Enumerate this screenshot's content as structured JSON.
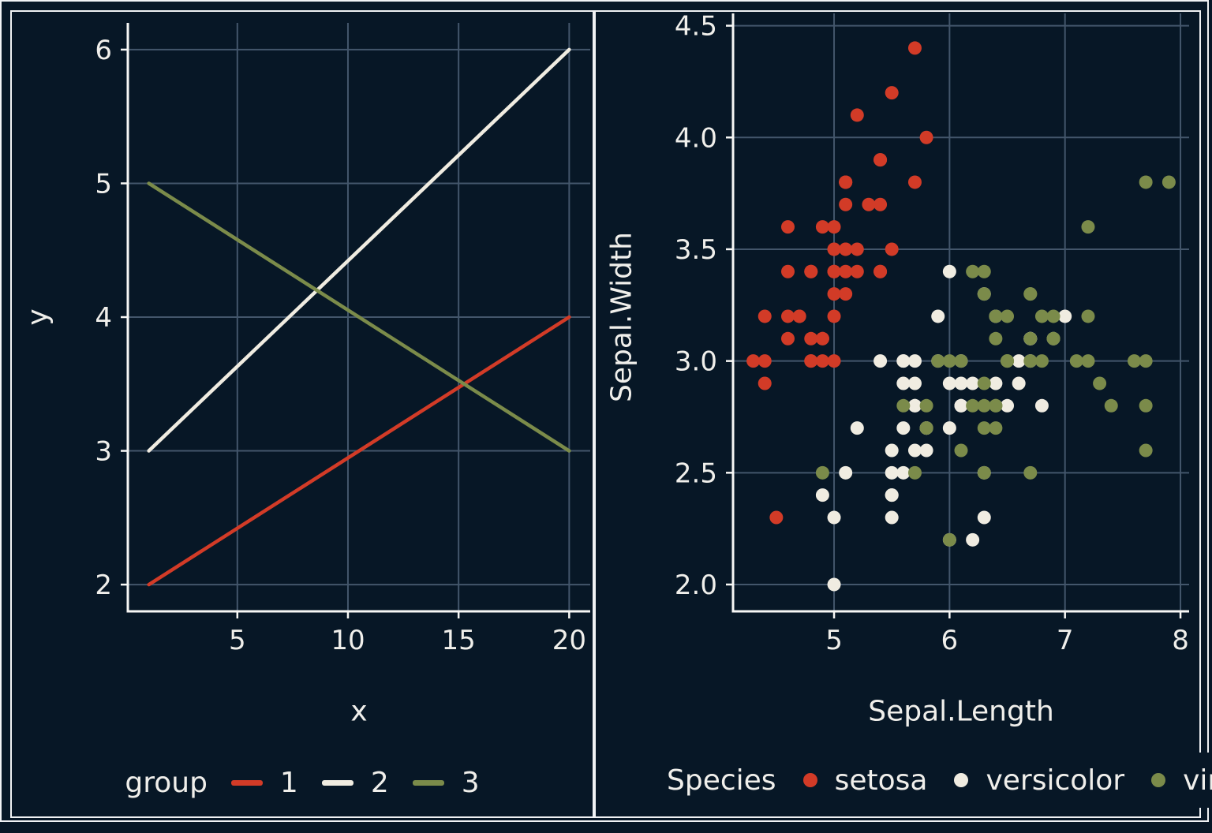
{
  "figure": {
    "background": "#071726",
    "frame_color": "#f0f2f4"
  },
  "palette": {
    "red": "#d23b27",
    "cream": "#f0ece1",
    "olive": "#7b8b4a",
    "grid": "#43566b",
    "axis": "#f7f7f5",
    "text": "#f0efeb"
  },
  "chart_data": [
    {
      "id": "line-chart",
      "type": "line",
      "title": "",
      "xlabel": "x",
      "ylabel": "y",
      "xlim": [
        0.05,
        20.95
      ],
      "ylim": [
        1.8,
        6.2
      ],
      "grid": true,
      "legend_position": "bottom",
      "legend_title": "group",
      "x_ticks": {
        "values": [
          5,
          10,
          15,
          20
        ],
        "labels": [
          "5",
          "10",
          "15",
          "20"
        ]
      },
      "y_ticks": {
        "values": [
          2,
          3,
          4,
          5,
          6
        ],
        "labels": [
          "2",
          "3",
          "4",
          "5",
          "6"
        ]
      },
      "series": [
        {
          "name": "1",
          "color_key": "red",
          "x": [
            1,
            20
          ],
          "y": [
            2,
            4
          ]
        },
        {
          "name": "2",
          "color_key": "cream",
          "x": [
            1,
            20
          ],
          "y": [
            3,
            6
          ]
        },
        {
          "name": "3",
          "color_key": "olive",
          "x": [
            1,
            20
          ],
          "y": [
            5,
            3
          ]
        }
      ]
    },
    {
      "id": "iris-scatter",
      "type": "scatter",
      "title": "",
      "xlabel": "Sepal.Length",
      "ylabel": "Sepal.Width",
      "xlim": [
        4.125,
        8.075
      ],
      "ylim": [
        1.88,
        4.555
      ],
      "grid": true,
      "legend_position": "bottom",
      "legend_title": "Species",
      "x_ticks": {
        "values": [
          5,
          6,
          7,
          8
        ],
        "labels": [
          "5",
          "6",
          "7",
          "8"
        ]
      },
      "y_ticks": {
        "values": [
          2.0,
          2.5,
          3.0,
          3.5,
          4.0,
          4.5
        ],
        "labels": [
          "2.0",
          "2.5",
          "3.0",
          "3.5",
          "4.0",
          "4.5"
        ]
      },
      "series": [
        {
          "name": "setosa",
          "color_key": "red",
          "points": [
            [
              5.1,
              3.5
            ],
            [
              4.9,
              3.0
            ],
            [
              4.7,
              3.2
            ],
            [
              4.6,
              3.1
            ],
            [
              5.0,
              3.6
            ],
            [
              5.4,
              3.9
            ],
            [
              4.6,
              3.4
            ],
            [
              5.0,
              3.4
            ],
            [
              4.4,
              2.9
            ],
            [
              4.9,
              3.1
            ],
            [
              5.4,
              3.7
            ],
            [
              4.8,
              3.4
            ],
            [
              4.8,
              3.0
            ],
            [
              4.3,
              3.0
            ],
            [
              5.8,
              4.0
            ],
            [
              5.7,
              4.4
            ],
            [
              5.4,
              3.9
            ],
            [
              5.1,
              3.5
            ],
            [
              5.7,
              3.8
            ],
            [
              5.1,
              3.8
            ],
            [
              5.4,
              3.4
            ],
            [
              5.1,
              3.7
            ],
            [
              4.6,
              3.6
            ],
            [
              5.1,
              3.3
            ],
            [
              4.8,
              3.4
            ],
            [
              5.0,
              3.0
            ],
            [
              5.0,
              3.4
            ],
            [
              5.2,
              3.5
            ],
            [
              5.2,
              3.4
            ],
            [
              4.7,
              3.2
            ],
            [
              4.8,
              3.1
            ],
            [
              5.4,
              3.4
            ],
            [
              5.2,
              4.1
            ],
            [
              5.5,
              4.2
            ],
            [
              4.9,
              3.1
            ],
            [
              5.0,
              3.2
            ],
            [
              5.5,
              3.5
            ],
            [
              4.9,
              3.6
            ],
            [
              4.4,
              3.0
            ],
            [
              5.1,
              3.4
            ],
            [
              5.0,
              3.5
            ],
            [
              4.5,
              2.3
            ],
            [
              4.4,
              3.2
            ],
            [
              5.0,
              3.5
            ],
            [
              5.1,
              3.8
            ],
            [
              4.8,
              3.0
            ],
            [
              5.1,
              3.8
            ],
            [
              4.6,
              3.2
            ],
            [
              5.3,
              3.7
            ],
            [
              5.0,
              3.3
            ]
          ]
        },
        {
          "name": "versicolor",
          "color_key": "cream",
          "points": [
            [
              7.0,
              3.2
            ],
            [
              6.4,
              3.2
            ],
            [
              6.9,
              3.1
            ],
            [
              5.5,
              2.3
            ],
            [
              6.5,
              2.8
            ],
            [
              5.7,
              2.8
            ],
            [
              6.3,
              3.3
            ],
            [
              4.9,
              2.4
            ],
            [
              6.6,
              2.9
            ],
            [
              5.2,
              2.7
            ],
            [
              5.0,
              2.0
            ],
            [
              5.9,
              3.0
            ],
            [
              6.0,
              2.2
            ],
            [
              6.1,
              2.9
            ],
            [
              5.6,
              2.9
            ],
            [
              6.7,
              3.1
            ],
            [
              5.6,
              3.0
            ],
            [
              5.8,
              2.7
            ],
            [
              6.2,
              2.2
            ],
            [
              5.6,
              2.5
            ],
            [
              5.9,
              3.2
            ],
            [
              6.1,
              2.8
            ],
            [
              6.3,
              2.5
            ],
            [
              6.1,
              2.8
            ],
            [
              6.4,
              2.9
            ],
            [
              6.6,
              3.0
            ],
            [
              6.8,
              2.8
            ],
            [
              6.7,
              3.0
            ],
            [
              6.0,
              2.9
            ],
            [
              5.7,
              2.6
            ],
            [
              5.5,
              2.4
            ],
            [
              5.5,
              2.4
            ],
            [
              5.8,
              2.7
            ],
            [
              6.0,
              2.7
            ],
            [
              5.4,
              3.0
            ],
            [
              6.0,
              3.4
            ],
            [
              6.7,
              3.1
            ],
            [
              6.3,
              2.3
            ],
            [
              5.6,
              3.0
            ],
            [
              5.5,
              2.5
            ],
            [
              5.5,
              2.6
            ],
            [
              6.1,
              3.0
            ],
            [
              5.8,
              2.6
            ],
            [
              5.0,
              2.3
            ],
            [
              5.6,
              2.7
            ],
            [
              5.7,
              3.0
            ],
            [
              5.7,
              2.9
            ],
            [
              6.2,
              2.9
            ],
            [
              5.1,
              2.5
            ],
            [
              5.7,
              2.8
            ]
          ]
        },
        {
          "name": "virginica",
          "color_key": "olive",
          "points": [
            [
              6.3,
              3.3
            ],
            [
              5.8,
              2.7
            ],
            [
              7.1,
              3.0
            ],
            [
              6.3,
              2.9
            ],
            [
              6.5,
              3.0
            ],
            [
              7.6,
              3.0
            ],
            [
              4.9,
              2.5
            ],
            [
              7.3,
              2.9
            ],
            [
              6.7,
              2.5
            ],
            [
              7.2,
              3.6
            ],
            [
              6.5,
              3.2
            ],
            [
              6.4,
              2.7
            ],
            [
              6.8,
              3.0
            ],
            [
              5.7,
              2.5
            ],
            [
              5.8,
              2.8
            ],
            [
              6.4,
              3.2
            ],
            [
              6.5,
              3.0
            ],
            [
              7.7,
              3.8
            ],
            [
              7.7,
              2.6
            ],
            [
              6.0,
              2.2
            ],
            [
              6.9,
              3.2
            ],
            [
              5.6,
              2.8
            ],
            [
              7.7,
              2.8
            ],
            [
              6.3,
              2.7
            ],
            [
              6.7,
              3.3
            ],
            [
              7.2,
              3.2
            ],
            [
              6.2,
              2.8
            ],
            [
              6.1,
              3.0
            ],
            [
              6.4,
              2.8
            ],
            [
              7.2,
              3.0
            ],
            [
              7.4,
              2.8
            ],
            [
              7.9,
              3.8
            ],
            [
              6.4,
              2.8
            ],
            [
              6.3,
              2.8
            ],
            [
              6.1,
              2.6
            ],
            [
              7.7,
              3.0
            ],
            [
              6.3,
              3.4
            ],
            [
              6.4,
              3.1
            ],
            [
              6.0,
              3.0
            ],
            [
              6.9,
              3.1
            ],
            [
              6.7,
              3.1
            ],
            [
              6.9,
              3.1
            ],
            [
              5.8,
              2.7
            ],
            [
              6.8,
              3.2
            ],
            [
              6.7,
              3.3
            ],
            [
              6.7,
              3.0
            ],
            [
              6.3,
              2.5
            ],
            [
              6.5,
              3.0
            ],
            [
              6.2,
              3.4
            ],
            [
              5.9,
              3.0
            ]
          ]
        }
      ]
    }
  ]
}
